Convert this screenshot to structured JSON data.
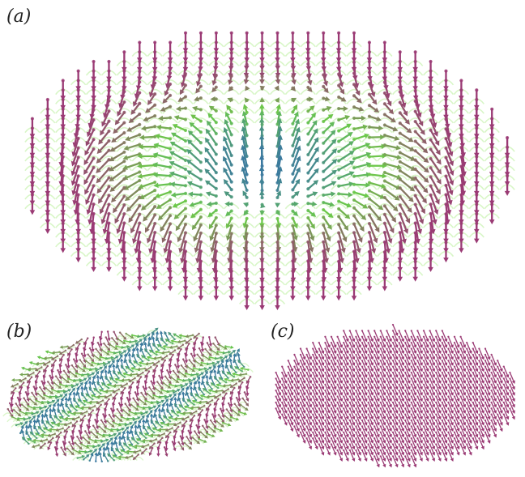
{
  "panels": [
    {
      "label": "(a)",
      "field": "skyrmion"
    },
    {
      "label": "(b)",
      "field": "helical"
    },
    {
      "label": "(c)",
      "field": "ferromagnet"
    }
  ],
  "colors": {
    "out_of_plane": "#9a3a74",
    "in_plane_mid": "#6cc94a",
    "core": "#3a78a0",
    "halo": "#b9ef9a",
    "background": "#ffffff"
  }
}
